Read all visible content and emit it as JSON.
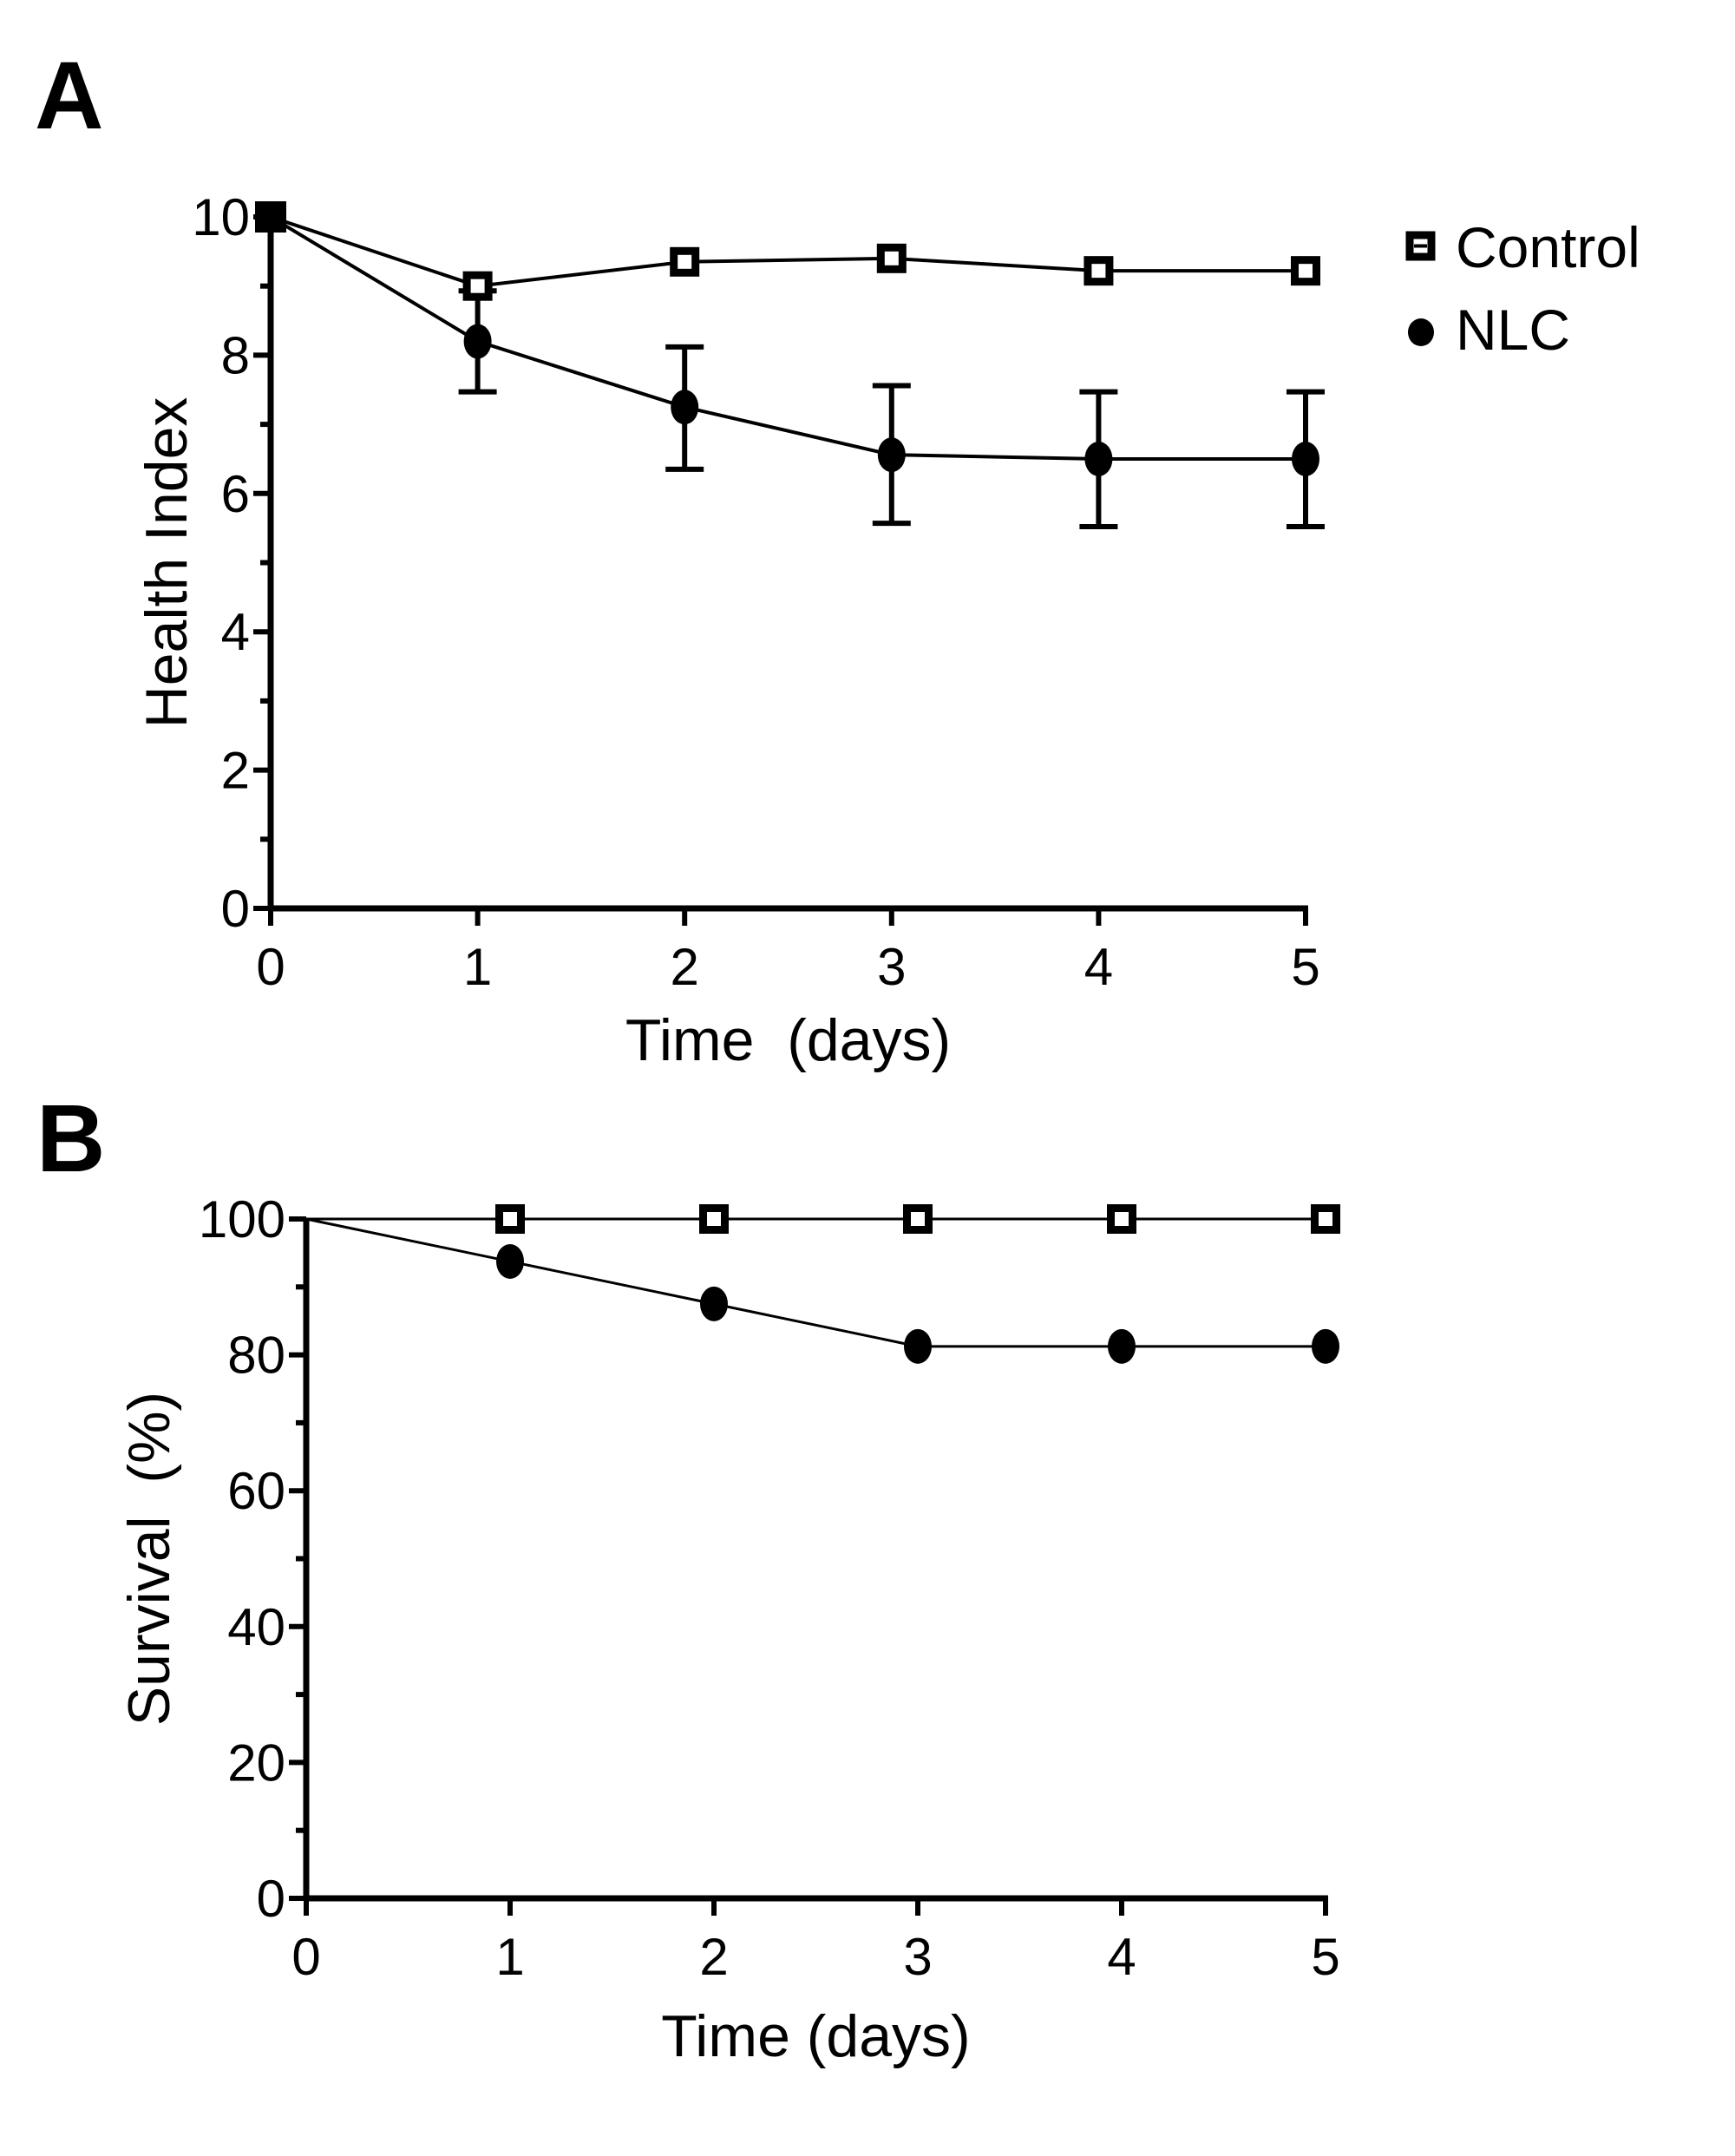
{
  "figure": {
    "panels": [
      {
        "id": "A",
        "letter": "A"
      },
      {
        "id": "B",
        "letter": "B"
      }
    ],
    "legend": {
      "placement": "top-right of panel A",
      "entries": [
        {
          "label": "Control",
          "marker": "open-square-icon",
          "color": "#000000"
        },
        {
          "label": "NLC",
          "marker": "filled-circle-icon",
          "color": "#000000"
        }
      ]
    }
  },
  "chart_data": [
    {
      "panel": "A",
      "type": "line",
      "title": "",
      "xlabel": "Time  (days)",
      "ylabel": "Health Index",
      "xlim": [
        0,
        5
      ],
      "ylim": [
        0,
        10
      ],
      "xticks": [
        0,
        1,
        2,
        3,
        4,
        5
      ],
      "xtick_labels": [
        "0",
        "1",
        "2",
        "3",
        "4",
        "5"
      ],
      "yticks": [
        0,
        2,
        4,
        6,
        8,
        10
      ],
      "ytick_labels": [
        "0",
        "2",
        "4",
        "6",
        "8",
        "10"
      ],
      "yminor_ticks": [
        1,
        3,
        5,
        7,
        9
      ],
      "grid": false,
      "legend": "top-right",
      "x": [
        0,
        1,
        2,
        3,
        4,
        5
      ],
      "series": [
        {
          "name": "Control",
          "marker": "open-square",
          "values": [
            10,
            9.0,
            9.35,
            9.4,
            9.22,
            9.22
          ],
          "error": null
        },
        {
          "name": "NLC",
          "marker": "filled-circle",
          "values": [
            10,
            8.2,
            7.25,
            6.56,
            6.5,
            6.5
          ],
          "error_low": [
            10,
            7.47,
            6.35,
            5.57,
            5.52,
            5.52
          ],
          "error_high": [
            10,
            8.93,
            8.12,
            7.56,
            7.47,
            7.47
          ]
        }
      ]
    },
    {
      "panel": "B",
      "type": "line",
      "title": "",
      "xlabel": "Time (days)",
      "ylabel": "Survival  (%)",
      "xlim": [
        0,
        5
      ],
      "ylim": [
        0,
        100
      ],
      "xticks": [
        0,
        1,
        2,
        3,
        4,
        5
      ],
      "xtick_labels": [
        "0",
        "1",
        "2",
        "3",
        "4",
        "5"
      ],
      "yticks": [
        0,
        20,
        40,
        60,
        80,
        100
      ],
      "ytick_labels": [
        "0",
        "20",
        "40",
        "60",
        "80",
        "100"
      ],
      "yminor_ticks": [
        10,
        30,
        50,
        70,
        90
      ],
      "grid": false,
      "legend": "shared with panel A",
      "x": [
        0,
        1,
        2,
        3,
        4,
        5
      ],
      "series": [
        {
          "name": "Control",
          "marker": "open-square",
          "values": [
            100,
            100,
            100,
            100,
            100,
            100
          ],
          "marker_at_origin": false
        },
        {
          "name": "NLC",
          "marker": "filled-circle",
          "values": [
            100,
            93.75,
            87.5,
            81.25,
            81.25,
            81.25
          ],
          "marker_at_origin": false
        }
      ]
    }
  ]
}
